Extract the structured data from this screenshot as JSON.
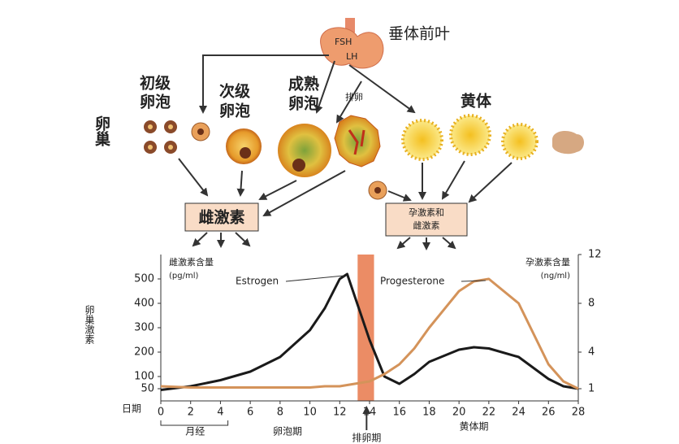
{
  "diagram": {
    "pituitary": {
      "label": "垂体前叶",
      "fsh": "FSH",
      "lh": "LH"
    },
    "ovary": "卵巢",
    "primary_follicle": [
      "初级",
      "卵泡"
    ],
    "secondary_follicle": [
      "次级",
      "卵泡"
    ],
    "mature_follicle": [
      "成熟",
      "卵泡"
    ],
    "ovulation": "排卵",
    "corpus_luteum": "黄体",
    "estrogen_box": "雌激素",
    "both_box": [
      "孕激素和",
      "雌激素"
    ]
  },
  "chart_data": {
    "type": "line",
    "y_axis_title": "卵巢激素",
    "left_unit": [
      "雌激素含量",
      "(pg/ml)"
    ],
    "right_unit": [
      "孕激素含量",
      "(ng/ml)"
    ],
    "x_label": "日期",
    "x": [
      0,
      2,
      4,
      6,
      8,
      10,
      11,
      12,
      12.5,
      13,
      14,
      15,
      16,
      17,
      18,
      20,
      21,
      22,
      24,
      26,
      27,
      28
    ],
    "series": [
      {
        "name": "Estrogen",
        "color": "#1a1a1a",
        "values": [
          45,
          60,
          85,
          120,
          180,
          290,
          380,
          500,
          520,
          430,
          250,
          100,
          70,
          110,
          160,
          210,
          220,
          215,
          180,
          90,
          60,
          50
        ]
      },
      {
        "name": "Progesterone",
        "color": "#d4935a",
        "axis": "y2",
        "values": [
          1.2,
          1.1,
          1.1,
          1.1,
          1.1,
          1.1,
          1.2,
          1.2,
          1.3,
          1.4,
          1.6,
          2.2,
          3,
          4.3,
          6,
          9,
          9.8,
          10,
          8,
          3,
          1.6,
          1
        ]
      }
    ],
    "xlim": [
      0,
      28
    ],
    "xticks": [
      0,
      2,
      4,
      6,
      8,
      10,
      12,
      14,
      16,
      18,
      20,
      22,
      24,
      26,
      28
    ],
    "ylim": [
      0,
      600
    ],
    "yticks": [
      50,
      100,
      200,
      300,
      400,
      500
    ],
    "y2lim": [
      0,
      12
    ],
    "y2ticks": [
      1,
      4,
      8,
      12
    ],
    "highlight_xrange": [
      13.2,
      14.3
    ],
    "phases": {
      "menses": "月经",
      "follicular": "卵泡期",
      "ovulatory": "排卵期",
      "luteal": "黄体期"
    }
  }
}
